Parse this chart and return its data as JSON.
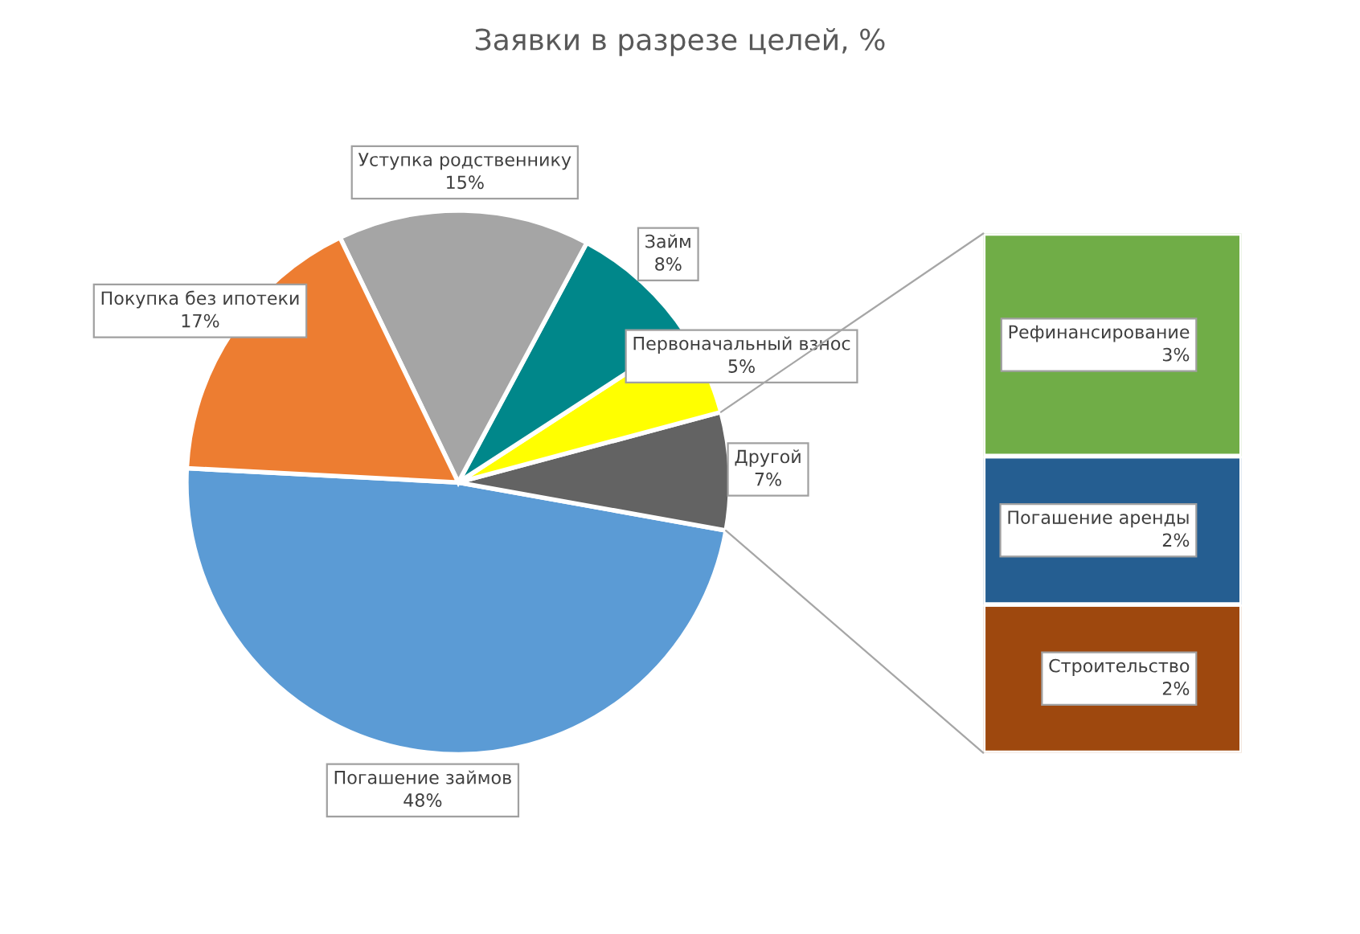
{
  "chart_data": [
    {
      "type": "pie",
      "title": "Заявки в разрезе целей, %",
      "categories": [
        "Погашение займов",
        "Другой",
        "Первоначальный взнос",
        "Займ",
        "Уступка родственнику",
        "Покупка без ипотеки"
      ],
      "values": [
        48,
        7,
        5,
        8,
        15,
        17
      ],
      "value_labels": [
        "48%",
        "7%",
        "5%",
        "8%",
        "15%",
        "17%"
      ],
      "colors": [
        "#5b9bd5",
        "#636363",
        "#ffff00",
        "#00878a",
        "#a5a5a5",
        "#ed7d31"
      ]
    },
    {
      "type": "bar",
      "stacked": true,
      "categories": [
        null
      ],
      "series": [
        {
          "name": "Строительство",
          "color": "#9e480e",
          "values": [
            2
          ],
          "value_labels": [
            "2%"
          ]
        },
        {
          "name": "Погашение аренды",
          "color": "#255e91",
          "values": [
            2
          ],
          "value_labels": [
            "2%"
          ]
        },
        {
          "name": "Рефинансирование",
          "color": "#70ad47",
          "values": [
            3
          ],
          "value_labels": [
            "3%"
          ]
        }
      ]
    }
  ]
}
